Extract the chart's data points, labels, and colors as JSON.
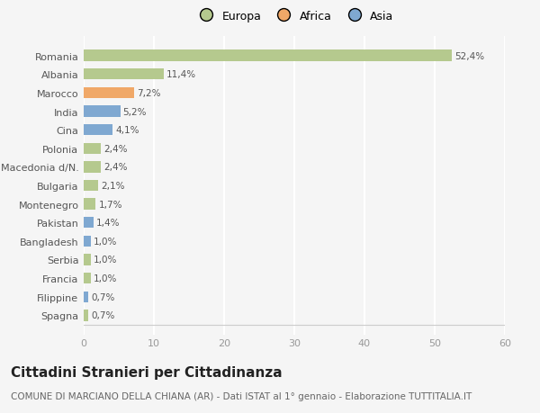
{
  "categories": [
    "Spagna",
    "Filippine",
    "Francia",
    "Serbia",
    "Bangladesh",
    "Pakistan",
    "Montenegro",
    "Bulgaria",
    "Macedonia d/N.",
    "Polonia",
    "Cina",
    "India",
    "Marocco",
    "Albania",
    "Romania"
  ],
  "values": [
    0.7,
    0.7,
    1.0,
    1.0,
    1.0,
    1.4,
    1.7,
    2.1,
    2.4,
    2.4,
    4.1,
    5.2,
    7.2,
    11.4,
    52.4
  ],
  "labels": [
    "0,7%",
    "0,7%",
    "1,0%",
    "1,0%",
    "1,0%",
    "1,4%",
    "1,7%",
    "2,1%",
    "2,4%",
    "2,4%",
    "4,1%",
    "5,2%",
    "7,2%",
    "11,4%",
    "52,4%"
  ],
  "colors": [
    "#b5c98e",
    "#7fa8d1",
    "#b5c98e",
    "#b5c98e",
    "#7fa8d1",
    "#7fa8d1",
    "#b5c98e",
    "#b5c98e",
    "#b5c98e",
    "#b5c98e",
    "#7fa8d1",
    "#7fa8d1",
    "#f0a868",
    "#b5c98e",
    "#b5c98e"
  ],
  "legend_labels": [
    "Europa",
    "Africa",
    "Asia"
  ],
  "legend_colors": [
    "#b5c98e",
    "#f0a868",
    "#7fa8d1"
  ],
  "title": "Cittadini Stranieri per Cittadinanza",
  "subtitle": "COMUNE DI MARCIANO DELLA CHIANA (AR) - Dati ISTAT al 1° gennaio - Elaborazione TUTTITALIA.IT",
  "xlim": [
    0,
    60
  ],
  "xticks": [
    0,
    10,
    20,
    30,
    40,
    50,
    60
  ],
  "background_color": "#f5f5f5",
  "grid_color": "#ffffff",
  "title_fontsize": 11,
  "subtitle_fontsize": 7.5,
  "label_fontsize": 7.5,
  "tick_fontsize": 8,
  "legend_fontsize": 9
}
